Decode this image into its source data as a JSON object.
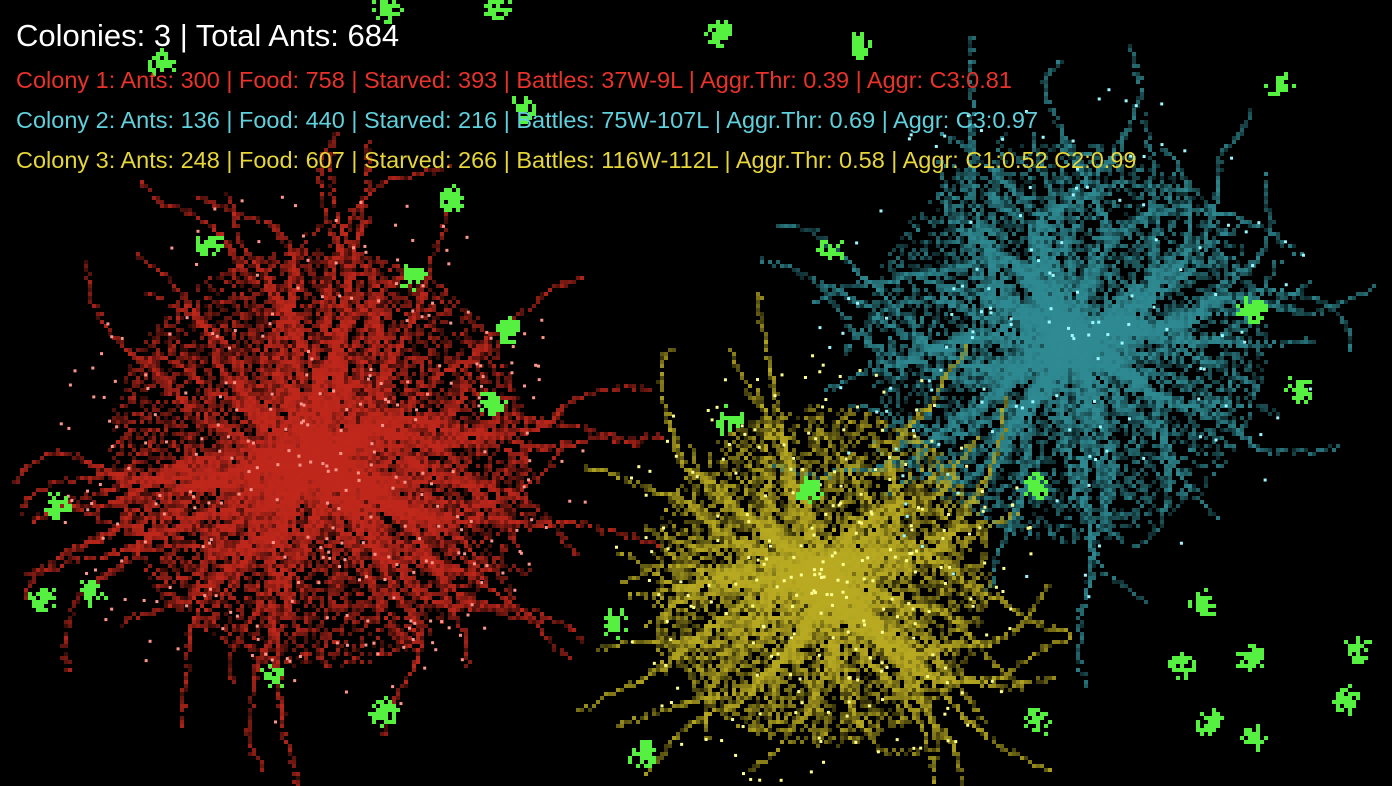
{
  "hud": {
    "summary": "Colonies: 3 | Total Ants: 684",
    "colonies": [
      {
        "text": "Colony 1: Ants: 300 | Food: 758 | Starved: 393 | Battles: 37W-9L | Aggr.Thr: 0.39 | Aggr: C3:0.81",
        "color": "#e8322a"
      },
      {
        "text": "Colony 2: Ants: 136 | Food: 440 | Starved: 216 | Battles: 75W-107L | Aggr.Thr: 0.69 | Aggr: C3:0.97",
        "color": "#5fd0dc"
      },
      {
        "text": "Colony 3: Ants: 248 | Food: 607 | Starved: 266 | Battles: 116W-112L | Aggr.Thr: 0.58 | Aggr: C1:0.52 C2:0.99",
        "color": "#e6d63a"
      }
    ]
  },
  "world": {
    "background": "#000000",
    "food_color": "#55f040",
    "colony_colors": {
      "colony_1": "#c0281c",
      "colony_2": "#2f8a92",
      "colony_3": "#b8aa22"
    }
  }
}
